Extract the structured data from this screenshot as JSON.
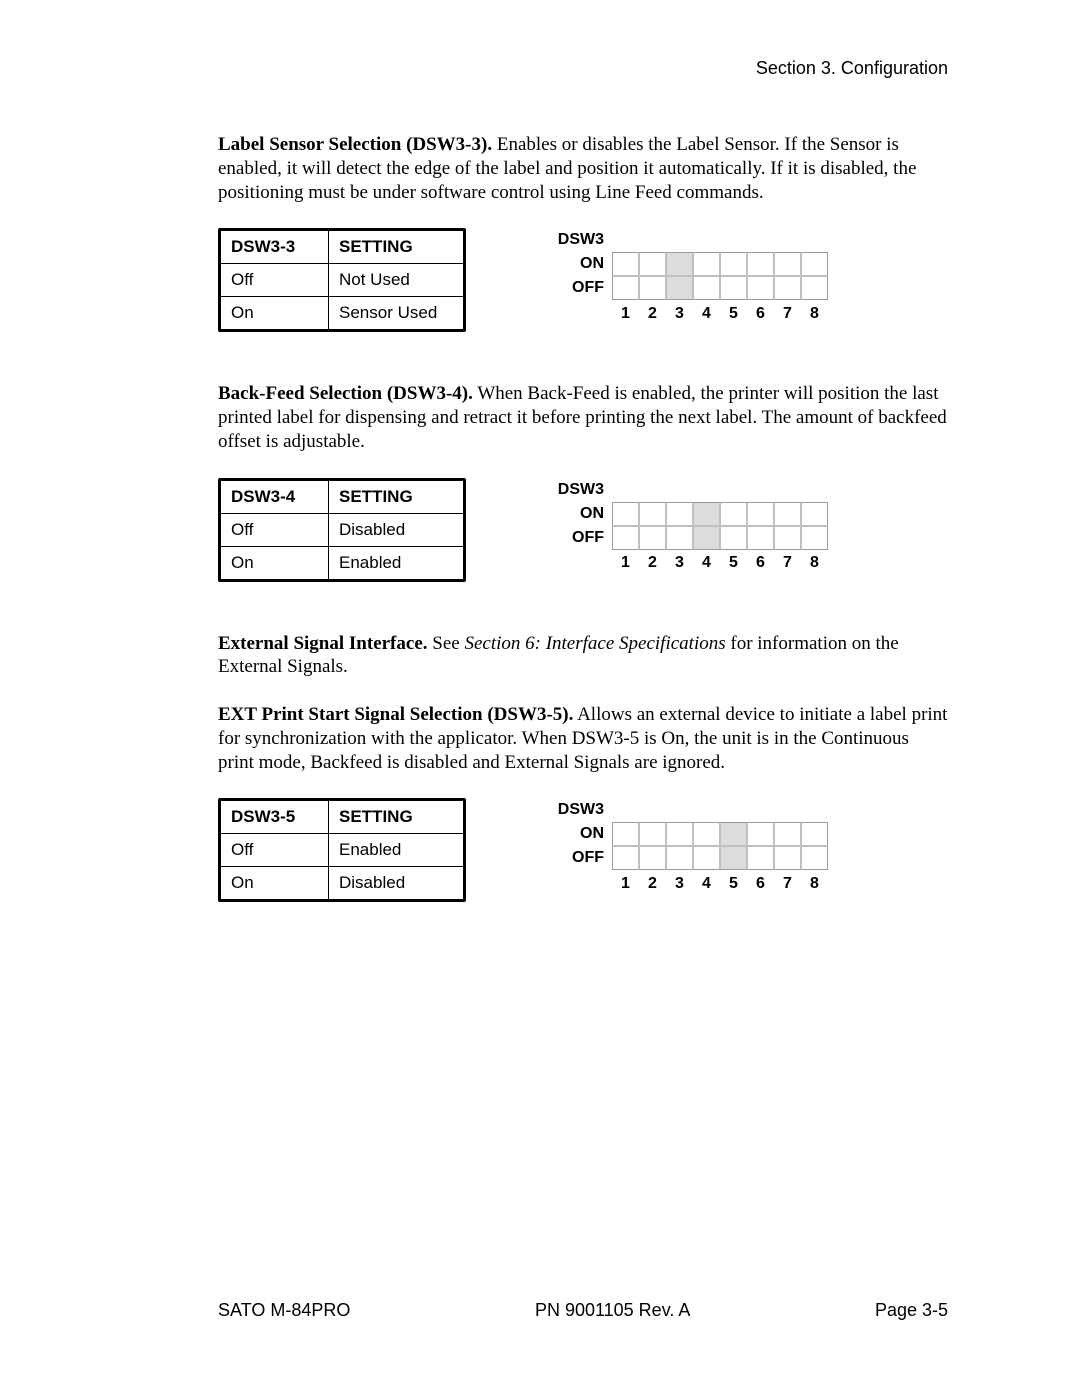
{
  "header": {
    "section": "Section 3. Configuration"
  },
  "sec1": {
    "heading": "Label Sensor Selection (DSW3-3).",
    "body": "Enables or disables the Label Sensor. If the Sensor is enabled, it will detect the edge of the label and position it automatically. If it is disabled, the positioning must be under software control using Line Feed commands.",
    "table": {
      "h1": "DSW3-3",
      "h2": "SETTING",
      "r1c1": "Off",
      "r1c2": "Not Used",
      "r2c1": "On",
      "r2c2": "Sensor Used"
    },
    "dip": {
      "title": "DSW3",
      "on": "ON",
      "off": "OFF",
      "shaded": 3,
      "n1": "1",
      "n2": "2",
      "n3": "3",
      "n4": "4",
      "n5": "5",
      "n6": "6",
      "n7": "7",
      "n8": "8"
    }
  },
  "sec2": {
    "heading": "Back-Feed Selection (DSW3-4).",
    "body": "When Back-Feed is enabled, the printer will position the last printed label for dispensing and retract it before printing the next label. The amount of backfeed offset is adjustable.",
    "table": {
      "h1": "DSW3-4",
      "h2": "SETTING",
      "r1c1": "Off",
      "r1c2": "Disabled",
      "r2c1": "On",
      "r2c2": "Enabled"
    },
    "dip": {
      "title": "DSW3",
      "on": "ON",
      "off": "OFF",
      "shaded": 4,
      "n1": "1",
      "n2": "2",
      "n3": "3",
      "n4": "4",
      "n5": "5",
      "n6": "6",
      "n7": "7",
      "n8": "8"
    }
  },
  "sec3a": {
    "heading": "External Signal Interface.",
    "body_pre": "See ",
    "body_em": "Section 6: Interface Specifications",
    "body_post": " for information on the External Signals."
  },
  "sec3b": {
    "heading": " EXT Print Start Signal Selection (DSW3-5).",
    "body": "Allows an external device to initiate a label print for synchronization with the applicator. When DSW3-5 is On, the unit is in the Continuous print mode, Backfeed is disabled and External Signals are ignored.",
    "table": {
      "h1": "DSW3-5",
      "h2": "SETTING",
      "r1c1": "Off",
      "r1c2": "Enabled",
      "r2c1": "On",
      "r2c2": "Disabled"
    },
    "dip": {
      "title": "DSW3",
      "on": "ON",
      "off": "OFF",
      "shaded": 5,
      "n1": "1",
      "n2": "2",
      "n3": "3",
      "n4": "4",
      "n5": "5",
      "n6": "6",
      "n7": "7",
      "n8": "8"
    }
  },
  "footer": {
    "left": "SATO M-84PRO",
    "center": "PN 9001105 Rev. A",
    "right": "Page 3-5"
  },
  "style": {
    "shaded_color": "#dcdcdc",
    "grid_border": "#bfbfbf"
  }
}
